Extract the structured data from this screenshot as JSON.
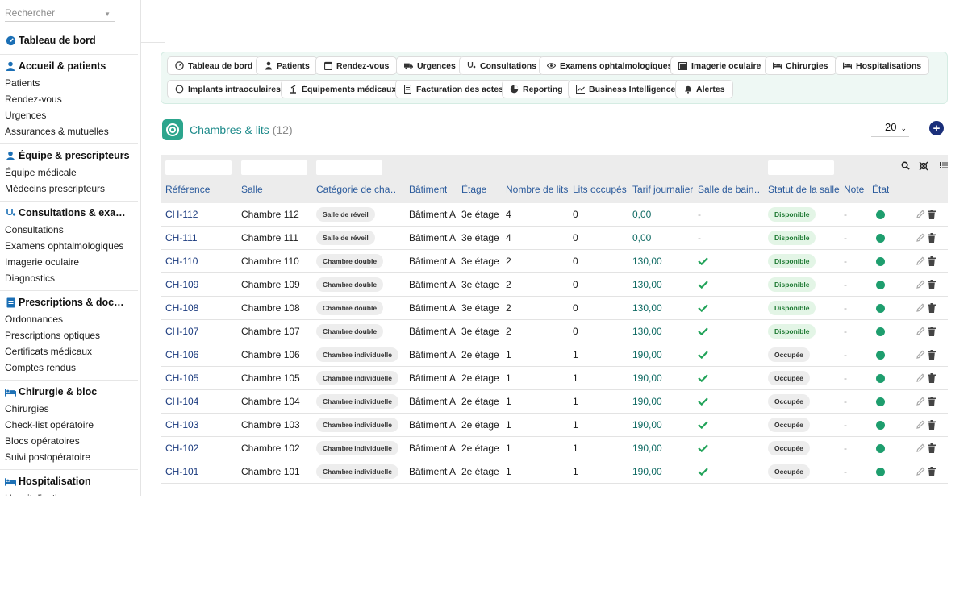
{
  "search": {
    "placeholder": "Rechercher"
  },
  "sidebar": {
    "dashboard": "Tableau de bord",
    "groups": [
      {
        "title": "Accueil & patients",
        "icon": "person-icon",
        "items": [
          "Patients",
          "Rendez-vous",
          "Urgences",
          "Assurances & mutuelles"
        ]
      },
      {
        "title": "Équipe & prescripteurs",
        "icon": "doctor-icon",
        "items": [
          "Équipe médicale",
          "Médecins prescripteurs"
        ]
      },
      {
        "title": "Consultations & exa…",
        "icon": "stethoscope-icon",
        "items": [
          "Consultations",
          "Examens ophtalmologiques",
          "Imagerie oculaire",
          "Diagnostics"
        ]
      },
      {
        "title": "Prescriptions & doc…",
        "icon": "document-icon",
        "items": [
          "Ordonnances",
          "Prescriptions optiques",
          "Certificats médicaux",
          "Comptes rendus"
        ]
      },
      {
        "title": "Chirurgie & bloc",
        "icon": "bed-icon",
        "items": [
          "Chirurgies",
          "Check-list opératoire",
          "Blocs opératoires",
          "Suivi postopératoire"
        ]
      },
      {
        "title": "Hospitalisation",
        "icon": "bed-icon",
        "items": [
          "Hospitalisations"
        ]
      }
    ]
  },
  "nav": {
    "buttons": [
      {
        "label": "Tableau de bord",
        "icon": "gauge-icon"
      },
      {
        "label": "Patients",
        "icon": "person-icon"
      },
      {
        "label": "Rendez-vous",
        "icon": "calendar-icon"
      },
      {
        "label": "Urgences",
        "icon": "ambulance-icon"
      },
      {
        "label": "Consultations",
        "icon": "stethoscope-icon"
      },
      {
        "label": "Examens ophtalmologiques",
        "icon": "eye-icon"
      },
      {
        "label": "Imagerie oculaire",
        "icon": "image-icon"
      },
      {
        "label": "Chirurgies",
        "icon": "bed-icon"
      },
      {
        "label": "Hospitalisations",
        "icon": "bed-icon"
      },
      {
        "label": "Implants intraoculaires",
        "icon": "circle-icon"
      },
      {
        "label": "Équipements médicaux",
        "icon": "equipment-icon"
      },
      {
        "label": "Facturation des actes",
        "icon": "invoice-icon"
      },
      {
        "label": "Reporting",
        "icon": "pie-chart-icon"
      },
      {
        "label": "Business Intelligence",
        "icon": "line-chart-icon"
      },
      {
        "label": "Alertes",
        "icon": "bell-icon"
      }
    ]
  },
  "list": {
    "title": "Chambres & lits",
    "count": "(12)",
    "page_size": "20",
    "columns": [
      "Référence",
      "Salle",
      "Catégorie de cha…",
      "Bâtiment",
      "Étage",
      "Nombre de lits",
      "Lits occupés",
      "Tarif journalier",
      "Salle de bain…",
      "Statut de la salle",
      "Note",
      "État"
    ],
    "rows": [
      {
        "ref": "CH-112",
        "salle": "Chambre 112",
        "cat": "Salle de réveil",
        "bat": "Bâtiment A",
        "etage": "3e étage",
        "lits": "4",
        "occ": "0",
        "tarif": "0,00",
        "bain": false,
        "statut": "Disponible",
        "statut_type": "green",
        "note": "-"
      },
      {
        "ref": "CH-111",
        "salle": "Chambre 111",
        "cat": "Salle de réveil",
        "bat": "Bâtiment A",
        "etage": "3e étage",
        "lits": "4",
        "occ": "0",
        "tarif": "0,00",
        "bain": false,
        "statut": "Disponible",
        "statut_type": "green",
        "note": "-"
      },
      {
        "ref": "CH-110",
        "salle": "Chambre 110",
        "cat": "Chambre double",
        "bat": "Bâtiment A",
        "etage": "3e étage",
        "lits": "2",
        "occ": "0",
        "tarif": "130,00",
        "bain": true,
        "statut": "Disponible",
        "statut_type": "green",
        "note": "-"
      },
      {
        "ref": "CH-109",
        "salle": "Chambre 109",
        "cat": "Chambre double",
        "bat": "Bâtiment A",
        "etage": "3e étage",
        "lits": "2",
        "occ": "0",
        "tarif": "130,00",
        "bain": true,
        "statut": "Disponible",
        "statut_type": "green",
        "note": "-"
      },
      {
        "ref": "CH-108",
        "salle": "Chambre 108",
        "cat": "Chambre double",
        "bat": "Bâtiment A",
        "etage": "3e étage",
        "lits": "2",
        "occ": "0",
        "tarif": "130,00",
        "bain": true,
        "statut": "Disponible",
        "statut_type": "green",
        "note": "-"
      },
      {
        "ref": "CH-107",
        "salle": "Chambre 107",
        "cat": "Chambre double",
        "bat": "Bâtiment A",
        "etage": "3e étage",
        "lits": "2",
        "occ": "0",
        "tarif": "130,00",
        "bain": true,
        "statut": "Disponible",
        "statut_type": "green",
        "note": "-"
      },
      {
        "ref": "CH-106",
        "salle": "Chambre 106",
        "cat": "Chambre individuelle",
        "bat": "Bâtiment A",
        "etage": "2e étage",
        "lits": "1",
        "occ": "1",
        "tarif": "190,00",
        "bain": true,
        "statut": "Occupée",
        "statut_type": "grey",
        "note": "-"
      },
      {
        "ref": "CH-105",
        "salle": "Chambre 105",
        "cat": "Chambre individuelle",
        "bat": "Bâtiment A",
        "etage": "2e étage",
        "lits": "1",
        "occ": "1",
        "tarif": "190,00",
        "bain": true,
        "statut": "Occupée",
        "statut_type": "grey",
        "note": "-"
      },
      {
        "ref": "CH-104",
        "salle": "Chambre 104",
        "cat": "Chambre individuelle",
        "bat": "Bâtiment A",
        "etage": "2e étage",
        "lits": "1",
        "occ": "1",
        "tarif": "190,00",
        "bain": true,
        "statut": "Occupée",
        "statut_type": "grey",
        "note": "-"
      },
      {
        "ref": "CH-103",
        "salle": "Chambre 103",
        "cat": "Chambre individuelle",
        "bat": "Bâtiment A",
        "etage": "2e étage",
        "lits": "1",
        "occ": "1",
        "tarif": "190,00",
        "bain": true,
        "statut": "Occupée",
        "statut_type": "grey",
        "note": "-"
      },
      {
        "ref": "CH-102",
        "salle": "Chambre 102",
        "cat": "Chambre individuelle",
        "bat": "Bâtiment A",
        "etage": "2e étage",
        "lits": "1",
        "occ": "1",
        "tarif": "190,00",
        "bain": true,
        "statut": "Occupée",
        "statut_type": "grey",
        "note": "-"
      },
      {
        "ref": "CH-101",
        "salle": "Chambre 101",
        "cat": "Chambre individuelle",
        "bat": "Bâtiment A",
        "etage": "2e étage",
        "lits": "1",
        "occ": "1",
        "tarif": "190,00",
        "bain": true,
        "statut": "Occupée",
        "statut_type": "grey",
        "note": "-"
      }
    ]
  },
  "colors": {
    "accent": "#2ca58d",
    "title": "#1d8a8a",
    "link": "#1a3a7e",
    "header_text": "#2a5a9c",
    "nav_panel_bg": "#eef8f4",
    "add_button": "#1a2f7a",
    "ok_dot": "#1e9e6e"
  }
}
